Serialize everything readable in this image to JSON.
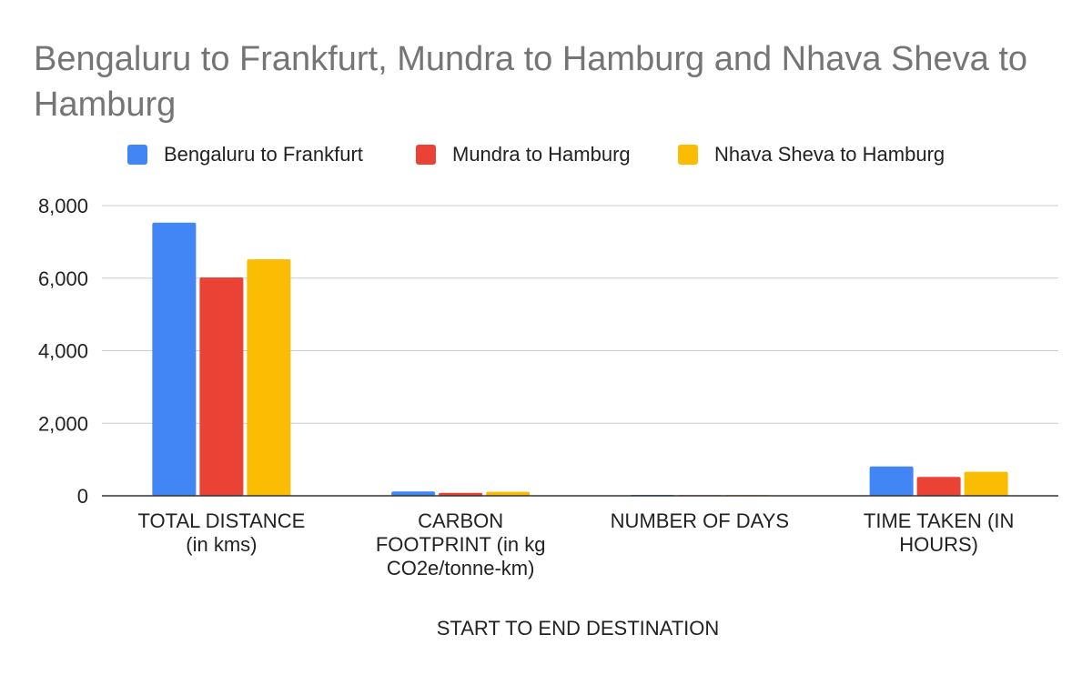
{
  "chart_data": {
    "type": "bar",
    "title": "Bengaluru to Frankfurt, Mundra to Hamburg and Nhava Sheva to Hamburg",
    "xlabel": "START TO END DESTINATION",
    "ylabel": "",
    "categories": [
      [
        "TOTAL DISTANCE",
        "(in kms)"
      ],
      [
        "CARBON",
        "FOOTPRINT (in kg",
        "CO2e/tonne-km)"
      ],
      [
        "NUMBER OF DAYS"
      ],
      [
        "TIME TAKEN (IN",
        "HOURS)"
      ]
    ],
    "series": [
      {
        "name": "Bengaluru to Frankfurt",
        "color": "#4285F4",
        "values": [
          7530,
          120,
          25,
          810
        ]
      },
      {
        "name": "Mundra to Hamburg",
        "color": "#EA4335",
        "values": [
          6020,
          80,
          20,
          520
        ]
      },
      {
        "name": "Nhava Sheva to Hamburg",
        "color": "#FBBC04",
        "values": [
          6520,
          110,
          22,
          660
        ]
      }
    ],
    "ylim": [
      0,
      8000
    ],
    "yticks": [
      0,
      2000,
      4000,
      6000,
      8000
    ],
    "ytick_labels": [
      "0",
      "2,000",
      "4,000",
      "6,000",
      "8,000"
    ],
    "grid": true,
    "legend_position": "top"
  }
}
